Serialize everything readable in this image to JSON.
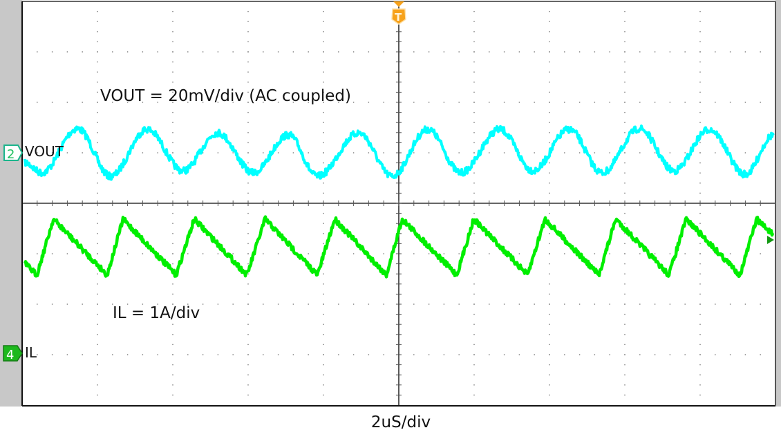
{
  "annotations": {
    "vout_scale": "VOUT = 20mV/div (AC coupled)",
    "il_scale": "IL = 1A/div",
    "timebase": "2uS/div"
  },
  "channels": {
    "ch2": {
      "number": "2",
      "name": "VOUT",
      "color": "#00ffff"
    },
    "ch4": {
      "number": "4",
      "name": "IL",
      "color": "#00ee00"
    }
  },
  "trigger": {
    "label": "T",
    "color": "#f7a21b"
  },
  "chart_data": {
    "type": "line",
    "xlabel": "2uS/div",
    "x_unit": "us",
    "xlim": [
      -10,
      10
    ],
    "grid": true,
    "grid_divisions": {
      "horizontal": 10,
      "vertical": 8
    },
    "series": [
      {
        "name": "VOUT",
        "channel": "2",
        "unit": "mV",
        "scale_per_div": 20,
        "color": "#00ffff",
        "points": [
          [
            -9.94,
            -3.8
          ],
          [
            -9.48,
            -7.9
          ],
          [
            -8.53,
            9.6
          ],
          [
            -7.65,
            -9.3
          ],
          [
            -6.68,
            9.3
          ],
          [
            -5.73,
            -7.1
          ],
          [
            -4.81,
            7.9
          ],
          [
            -3.86,
            -7.9
          ],
          [
            -2.93,
            7.1
          ],
          [
            -2.16,
            -9.3
          ],
          [
            -1.06,
            7.9
          ],
          [
            -0.18,
            -9.3
          ],
          [
            0.77,
            9.3
          ],
          [
            1.65,
            -7.9
          ],
          [
            2.68,
            9.3
          ],
          [
            3.57,
            -7.1
          ],
          [
            4.52,
            9.3
          ],
          [
            5.4,
            -7.9
          ],
          [
            6.39,
            9.6
          ],
          [
            7.31,
            -7.1
          ],
          [
            8.24,
            9.3
          ],
          [
            9.2,
            -8.5
          ],
          [
            9.95,
            7.1
          ]
        ]
      },
      {
        "name": "IL",
        "channel": "4",
        "unit": "A",
        "scale_per_div": 1,
        "color": "#00ee00",
        "points": [
          [
            -9.94,
            1.79
          ],
          [
            -9.61,
            1.55
          ],
          [
            -9.17,
            2.66
          ],
          [
            -7.74,
            1.55
          ],
          [
            -7.32,
            2.66
          ],
          [
            -5.91,
            1.55
          ],
          [
            -5.43,
            2.66
          ],
          [
            -4.03,
            1.55
          ],
          [
            -3.55,
            2.66
          ],
          [
            -2.16,
            1.55
          ],
          [
            -1.7,
            2.66
          ],
          [
            -0.33,
            1.55
          ],
          [
            0.09,
            2.66
          ],
          [
            1.54,
            1.55
          ],
          [
            1.99,
            2.66
          ],
          [
            3.42,
            1.55
          ],
          [
            3.88,
            2.66
          ],
          [
            5.31,
            1.55
          ],
          [
            5.76,
            2.66
          ],
          [
            7.17,
            1.55
          ],
          [
            7.63,
            2.66
          ],
          [
            9.06,
            1.55
          ],
          [
            9.5,
            2.66
          ],
          [
            9.95,
            2.34
          ]
        ]
      }
    ]
  }
}
